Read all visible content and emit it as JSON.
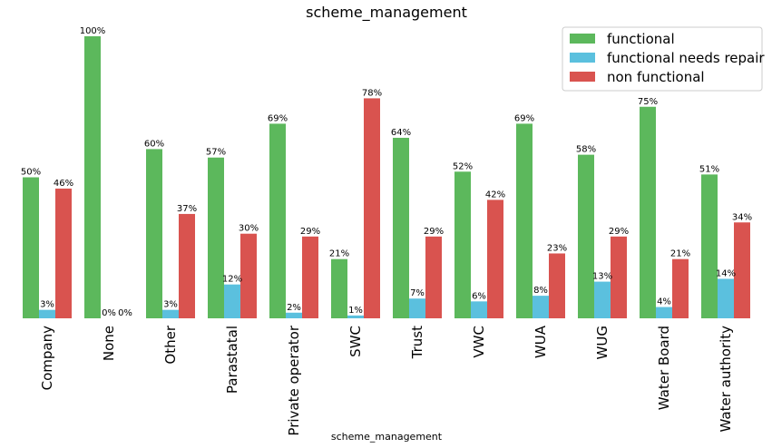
{
  "chart_data": {
    "type": "bar",
    "title": "scheme_management",
    "xlabel": "scheme_management",
    "ylabel": "",
    "ylim": [
      0,
      100
    ],
    "grid": false,
    "legend_position": "top-right",
    "categories": [
      "Company",
      "None",
      "Other",
      "Parastatal",
      "Private operator",
      "SWC",
      "Trust",
      "VWC",
      "WUA",
      "WUG",
      "Water Board",
      "Water authority"
    ],
    "series": [
      {
        "name": "functional",
        "color": "#5cb85c",
        "values": [
          50,
          100,
          60,
          57,
          69,
          21,
          64,
          52,
          69,
          58,
          75,
          51
        ]
      },
      {
        "name": "functional needs repair",
        "color": "#5bc0de",
        "values": [
          3,
          0,
          3,
          12,
          2,
          1,
          7,
          6,
          8,
          13,
          4,
          14
        ]
      },
      {
        "name": "non functional",
        "color": "#d9534f",
        "values": [
          46,
          0,
          37,
          30,
          29,
          78,
          29,
          42,
          23,
          29,
          21,
          34
        ]
      }
    ],
    "value_suffix": "%"
  }
}
